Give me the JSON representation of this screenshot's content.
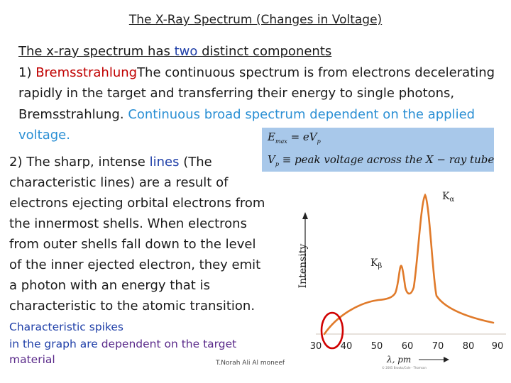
{
  "title": "The X-Ray Spectrum (Changes in Voltage)",
  "intro": {
    "line1_a": "The x-ray spectrum has ",
    "line1_b": "two",
    "line1_c": " distinct components",
    "item1_lead": "1) ",
    "item1_term": "Bremsstrahlung",
    "item1_body": "The continuous spectrum is from electrons decelerating rapidly in the target and transferring their energy to single photons, Bremsstrahlung. ",
    "item1_highlight": "Continuous broad spectrum dependent on the applied voltage."
  },
  "formula": {
    "f1_var": "E",
    "f1_sub": "max",
    "f1_rhs": " = eV",
    "f1_rhs_sub": "p",
    "f2_var": "V",
    "f2_sub": "p",
    "f2_rhs": " ≡ peak  voltage  across  the  X − ray  tube"
  },
  "item2": {
    "lead": "2) The sharp, intense ",
    "lines_word": "lines",
    "paren": " (The characteristic lines) are a result of electrons ejecting orbital electrons from the innermost shells. When electrons from outer shells fall down to the level of the inner ejected electron, they emit a photon with an energy that is characteristic to the atomic transition. ",
    "small_a": "Characteristic spikes",
    "small_b": "in the graph are ",
    "small_c": "dependent on the target",
    "small_d": "material"
  },
  "footer": "T.Norah Ali Al moneef",
  "copyright": "© 2005 Brooks/Cole - Thomson",
  "graph": {
    "ylabel": "Intensity",
    "xlabel": "λ, pm",
    "ticks": [
      "30",
      "40",
      "50",
      "60",
      "70",
      "80",
      "90"
    ],
    "k_alpha": "K",
    "k_alpha_sub": "α",
    "k_beta": "K",
    "k_beta_sub": "β",
    "curve_color": "#e07a2a",
    "circle_color": "#d00000"
  }
}
